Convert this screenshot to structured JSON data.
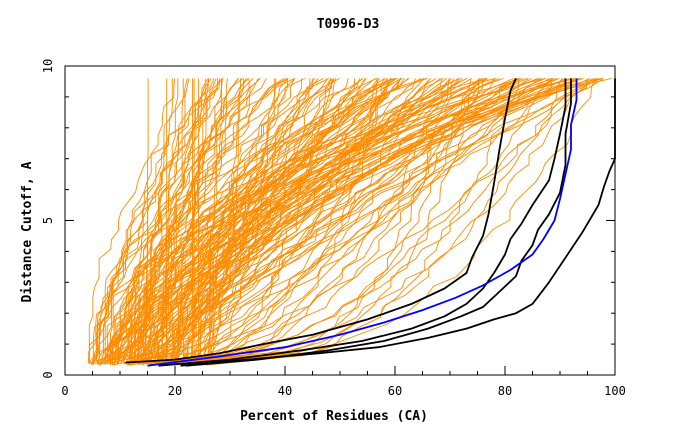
{
  "chart_data": {
    "type": "line",
    "title": "T0996-D3",
    "xlabel": "Percent of Residues (CA)",
    "ylabel": "Distance Cutoff, A",
    "xlim": [
      0,
      100
    ],
    "ylim": [
      0,
      10
    ],
    "x_ticks": [
      "0",
      "20",
      "40",
      "60",
      "80",
      "100"
    ],
    "y_ticks": [
      "0",
      "5",
      "10"
    ],
    "grid": false,
    "legend": "none",
    "series_style": {
      "background_color": "#ff8c00",
      "background_count": 180,
      "highlight_black": "#000000",
      "highlight_blue": "#0000ff"
    },
    "series": [
      {
        "color": "#000000",
        "points": [
          [
            11,
            0.4
          ],
          [
            20,
            0.5
          ],
          [
            28,
            0.7
          ],
          [
            36,
            1.0
          ],
          [
            45,
            1.3
          ],
          [
            55,
            1.8
          ],
          [
            63,
            2.3
          ],
          [
            69,
            2.8
          ],
          [
            73,
            3.3
          ],
          [
            74,
            3.8
          ],
          [
            76,
            4.5
          ],
          [
            77,
            5.2
          ],
          [
            78,
            6.2
          ],
          [
            79,
            7.3
          ],
          [
            80,
            8.3
          ],
          [
            81,
            9.2
          ],
          [
            82,
            9.6
          ]
        ]
      },
      {
        "color": "#000000",
        "points": [
          [
            22,
            0.3
          ],
          [
            35,
            0.5
          ],
          [
            48,
            0.8
          ],
          [
            58,
            1.1
          ],
          [
            66,
            1.5
          ],
          [
            72,
            1.9
          ],
          [
            76,
            2.2
          ],
          [
            79,
            2.7
          ],
          [
            82,
            3.2
          ],
          [
            83,
            3.7
          ],
          [
            85,
            4.2
          ],
          [
            86,
            4.7
          ],
          [
            88,
            5.2
          ],
          [
            90,
            5.9
          ],
          [
            91,
            6.8
          ],
          [
            91,
            7.8
          ],
          [
            92,
            8.8
          ],
          [
            92,
            9.6
          ]
        ]
      },
      {
        "color": "#000000",
        "points": [
          [
            21,
            0.3
          ],
          [
            33,
            0.5
          ],
          [
            46,
            0.7
          ],
          [
            57,
            0.9
          ],
          [
            66,
            1.2
          ],
          [
            73,
            1.5
          ],
          [
            78,
            1.8
          ],
          [
            82,
            2.0
          ],
          [
            85,
            2.3
          ],
          [
            88,
            3.0
          ],
          [
            91,
            3.8
          ],
          [
            94,
            4.6
          ],
          [
            97,
            5.5
          ],
          [
            98,
            6.1
          ],
          [
            99,
            6.6
          ],
          [
            100,
            7.0
          ],
          [
            100,
            8.5
          ],
          [
            100,
            9.6
          ]
        ]
      },
      {
        "color": "#000000",
        "points": [
          [
            17,
            0.3
          ],
          [
            30,
            0.5
          ],
          [
            43,
            0.8
          ],
          [
            54,
            1.1
          ],
          [
            63,
            1.5
          ],
          [
            69,
            1.9
          ],
          [
            73,
            2.3
          ],
          [
            76,
            2.8
          ],
          [
            78,
            3.3
          ],
          [
            80,
            3.9
          ],
          [
            81,
            4.4
          ],
          [
            83,
            4.9
          ],
          [
            85,
            5.5
          ],
          [
            88,
            6.3
          ],
          [
            89,
            7.0
          ],
          [
            90,
            7.8
          ],
          [
            91,
            8.7
          ],
          [
            91,
            9.6
          ]
        ]
      },
      {
        "color": "#0000ff",
        "points": [
          [
            15,
            0.3
          ],
          [
            28,
            0.6
          ],
          [
            40,
            0.9
          ],
          [
            50,
            1.3
          ],
          [
            58,
            1.7
          ],
          [
            65,
            2.1
          ],
          [
            71,
            2.5
          ],
          [
            76,
            2.9
          ],
          [
            81,
            3.4
          ],
          [
            85,
            3.9
          ],
          [
            87,
            4.4
          ],
          [
            89,
            5.0
          ],
          [
            90,
            5.7
          ],
          [
            91,
            6.5
          ],
          [
            92,
            7.3
          ],
          [
            92,
            8.1
          ],
          [
            93,
            8.9
          ],
          [
            93,
            9.6
          ]
        ]
      }
    ]
  }
}
